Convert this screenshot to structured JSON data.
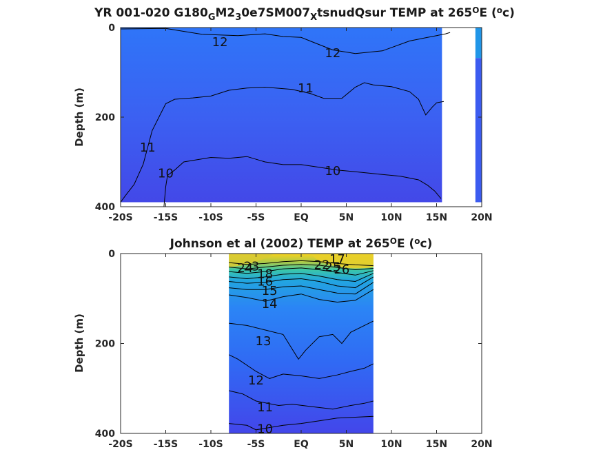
{
  "chart_data": [
    {
      "type": "heatmap",
      "panel": "top",
      "title_parts": [
        "YR 001-020 G180",
        "G",
        "M2",
        "3",
        "0e7SM007",
        "X",
        "tsnudQsur TEMP at 265",
        "O",
        "E (",
        "o",
        "c)"
      ],
      "ylabel": "Depth (m)",
      "x_ticks": [
        "-20S",
        "-15S",
        "-10S",
        "-5S",
        "EQ",
        "5N",
        "10N",
        "15N",
        "20N"
      ],
      "x_values": [
        -20,
        -15,
        -10,
        -5,
        0,
        5,
        10,
        15,
        20
      ],
      "y_ticks": [
        "0",
        "200",
        "400"
      ],
      "y_values": [
        0,
        200,
        400
      ],
      "xlim": [
        -20,
        20
      ],
      "ylim": [
        0,
        400
      ],
      "y_reversed": true,
      "contour_labels": [
        {
          "text": "12",
          "lat": -9.0,
          "depth": 32
        },
        {
          "text": "12",
          "lat": 3.5,
          "depth": 57
        },
        {
          "text": "11",
          "lat": 0.5,
          "depth": 135
        },
        {
          "text": "11",
          "lat": -17.0,
          "depth": 268
        },
        {
          "text": "10",
          "lat": -15.0,
          "depth": 325
        },
        {
          "text": "10",
          "lat": 3.5,
          "depth": 320
        }
      ],
      "contours": [
        {
          "level": 12,
          "points": [
            [
              -20,
              3
            ],
            [
              -15,
              2
            ],
            [
              -11,
              15
            ],
            [
              -7,
              18
            ],
            [
              -4,
              14
            ],
            [
              -2,
              20
            ],
            [
              0,
              22
            ],
            [
              1.5,
              34
            ],
            [
              3.5,
              50
            ],
            [
              6,
              58
            ],
            [
              9,
              52
            ],
            [
              12,
              30
            ],
            [
              14,
              22
            ],
            [
              15,
              18
            ],
            [
              16,
              14
            ],
            [
              16.5,
              11
            ]
          ]
        },
        {
          "level": 11,
          "points": [
            [
              -20,
              390
            ],
            [
              -19.5,
              376
            ],
            [
              -18.5,
              350
            ],
            [
              -17.5,
              305
            ],
            [
              -16.5,
              230
            ],
            [
              -15.5,
              190
            ],
            [
              -15,
              170
            ],
            [
              -14,
              160
            ],
            [
              -12,
              157
            ],
            [
              -10,
              153
            ],
            [
              -8,
              140
            ],
            [
              -6,
              135
            ],
            [
              -4,
              133
            ],
            [
              -1,
              138
            ],
            [
              1,
              147
            ],
            [
              2.5,
              158
            ],
            [
              4.5,
              158
            ],
            [
              6,
              133
            ],
            [
              7,
              123
            ],
            [
              8,
              128
            ],
            [
              10,
              132
            ],
            [
              12,
              143
            ],
            [
              13,
              160
            ],
            [
              13.8,
              195
            ],
            [
              14.5,
              178
            ],
            [
              15,
              168
            ],
            [
              15.8,
              165
            ]
          ]
        },
        {
          "level": 10,
          "points": [
            [
              -15.2,
              400
            ],
            [
              -15,
              355
            ],
            [
              -14.8,
              330
            ],
            [
              -14,
              318
            ],
            [
              -13,
              300
            ],
            [
              -10,
              290
            ],
            [
              -8,
              292
            ],
            [
              -6,
              288
            ],
            [
              -4,
              300
            ],
            [
              -2,
              306
            ],
            [
              0,
              306
            ],
            [
              2,
              312
            ],
            [
              4,
              318
            ],
            [
              6,
              322
            ],
            [
              9,
              328
            ],
            [
              11,
              332
            ],
            [
              13,
              340
            ],
            [
              14,
              352
            ],
            [
              14.8,
              365
            ],
            [
              15.5,
              382
            ]
          ]
        }
      ],
      "colorscale": {
        "min": 10,
        "max": 28,
        "colors": [
          "#3e3be6",
          "#2f6ef7",
          "#1aa0e6",
          "#22c4b4",
          "#63d37f",
          "#bfc94a",
          "#f8d61b"
        ]
      },
      "mask_note": "blank columns beyond data coverage"
    },
    {
      "type": "heatmap",
      "panel": "bottom",
      "title_parts": [
        "Johnson et al (2002) TEMP at 265",
        "O",
        "E (",
        "o",
        "c)"
      ],
      "ylabel": "Depth (m)",
      "x_ticks": [
        "-20S",
        "-15S",
        "-10S",
        "-5S",
        "EQ",
        "5N",
        "10N",
        "15N",
        "20N"
      ],
      "x_values": [
        -20,
        -15,
        -10,
        -5,
        0,
        5,
        10,
        15,
        20
      ],
      "y_ticks": [
        "0",
        "200",
        "400"
      ],
      "y_values": [
        0,
        200,
        400
      ],
      "xlim": [
        -20,
        20
      ],
      "ylim": [
        0,
        400
      ],
      "y_reversed": true,
      "data_lat_range": [
        -8,
        8
      ],
      "contour_labels": [
        {
          "text": "24",
          "lat": -6.2,
          "depth": 32
        },
        {
          "text": "23",
          "lat": -5.5,
          "depth": 28
        },
        {
          "text": "22",
          "lat": 2.3,
          "depth": 25
        },
        {
          "text": "25",
          "lat": 3.5,
          "depth": 30
        },
        {
          "text": "26",
          "lat": 4.5,
          "depth": 35
        },
        {
          "text": "17",
          "lat": 4.0,
          "depth": 12
        },
        {
          "text": "18",
          "lat": -4.0,
          "depth": 45
        },
        {
          "text": "16",
          "lat": -4.0,
          "depth": 62
        },
        {
          "text": "15",
          "lat": -3.5,
          "depth": 83
        },
        {
          "text": "14",
          "lat": -3.5,
          "depth": 112
        },
        {
          "text": "13",
          "lat": -4.2,
          "depth": 195
        },
        {
          "text": "12",
          "lat": -5.0,
          "depth": 282
        },
        {
          "text": "11",
          "lat": -4.0,
          "depth": 342
        },
        {
          "text": "10",
          "lat": -4.0,
          "depth": 390
        }
      ],
      "contours": [
        {
          "level": 22,
          "points": [
            [
              -8,
              20
            ],
            [
              -6,
              24
            ],
            [
              -4,
              22
            ],
            [
              -2,
              18
            ],
            [
              0,
              16
            ],
            [
              2,
              18
            ],
            [
              4,
              22
            ],
            [
              6,
              25
            ],
            [
              8,
              27
            ]
          ]
        },
        {
          "level": 20,
          "points": [
            [
              -8,
              30
            ],
            [
              -6,
              34
            ],
            [
              -4,
              30
            ],
            [
              -2,
              26
            ],
            [
              0,
              24
            ],
            [
              2,
              26
            ],
            [
              4,
              31
            ],
            [
              6,
              36
            ],
            [
              8,
              33
            ]
          ]
        },
        {
          "level": 18,
          "points": [
            [
              -8,
              40
            ],
            [
              -6,
              44
            ],
            [
              -4,
              40
            ],
            [
              -2,
              34
            ],
            [
              0,
              32
            ],
            [
              2,
              36
            ],
            [
              4,
              42
            ],
            [
              6,
              48
            ],
            [
              8,
              38
            ]
          ]
        },
        {
          "level": 16,
          "points": [
            [
              -8,
              52
            ],
            [
              -6,
              56
            ],
            [
              -4,
              52
            ],
            [
              -2,
              46
            ],
            [
              0,
              44
            ],
            [
              2,
              50
            ],
            [
              4,
              58
            ],
            [
              6,
              62
            ],
            [
              8,
              44
            ]
          ]
        },
        {
          "level": 15,
          "points": [
            [
              -8,
              62
            ],
            [
              -6,
              66
            ],
            [
              -4,
              64
            ],
            [
              -2,
              58
            ],
            [
              0,
              56
            ],
            [
              2,
              62
            ],
            [
              4,
              72
            ],
            [
              6,
              76
            ],
            [
              8,
              52
            ]
          ]
        },
        {
          "level": 14,
          "points": [
            [
              -8,
              76
            ],
            [
              -6,
              80
            ],
            [
              -4,
              80
            ],
            [
              -2,
              74
            ],
            [
              0,
              72
            ],
            [
              2,
              80
            ],
            [
              4,
              88
            ],
            [
              6,
              90
            ],
            [
              8,
              64
            ]
          ]
        },
        {
          "level": 13.5,
          "points": [
            [
              -8,
              92
            ],
            [
              -6,
              98
            ],
            [
              -4,
              106
            ],
            [
              -2,
              96
            ],
            [
              0,
              90
            ],
            [
              2,
              102
            ],
            [
              4,
              108
            ],
            [
              6,
              104
            ],
            [
              8,
              80
            ]
          ]
        },
        {
          "level": 13,
          "points": [
            [
              -8,
              155
            ],
            [
              -6,
              160
            ],
            [
              -4,
              170
            ],
            [
              -2,
              180
            ],
            [
              -0.3,
              235
            ],
            [
              0.5,
              215
            ],
            [
              2,
              185
            ],
            [
              3.5,
              180
            ],
            [
              4.5,
              200
            ],
            [
              5.5,
              175
            ],
            [
              7,
              160
            ],
            [
              8,
              150
            ]
          ]
        },
        {
          "level": 12,
          "points": [
            [
              -8,
              225
            ],
            [
              -7,
              235
            ],
            [
              -5,
              262
            ],
            [
              -3.5,
              278
            ],
            [
              -2,
              268
            ],
            [
              0,
              272
            ],
            [
              2,
              278
            ],
            [
              4,
              270
            ],
            [
              5.5,
              262
            ],
            [
              7,
              255
            ],
            [
              8,
              245
            ]
          ]
        },
        {
          "level": 11,
          "points": [
            [
              -8,
              305
            ],
            [
              -6.5,
              312
            ],
            [
              -5,
              328
            ],
            [
              -2.5,
              338
            ],
            [
              -1,
              335
            ],
            [
              1,
              340
            ],
            [
              3.5,
              346
            ],
            [
              5.5,
              338
            ],
            [
              7,
              333
            ],
            [
              8,
              328
            ]
          ]
        },
        {
          "level": 10,
          "points": [
            [
              -8,
              378
            ],
            [
              -6,
              382
            ],
            [
              -5,
              392
            ],
            [
              -2,
              382
            ],
            [
              0,
              378
            ],
            [
              2,
              372
            ],
            [
              4,
              366
            ],
            [
              6,
              364
            ],
            [
              8,
              362
            ]
          ]
        }
      ],
      "colorscale": {
        "min": 10,
        "max": 28,
        "colors": [
          "#3e3be6",
          "#2f6ef7",
          "#1aa0e6",
          "#22c4b4",
          "#63d37f",
          "#bfc94a",
          "#f8d61b"
        ]
      }
    }
  ]
}
